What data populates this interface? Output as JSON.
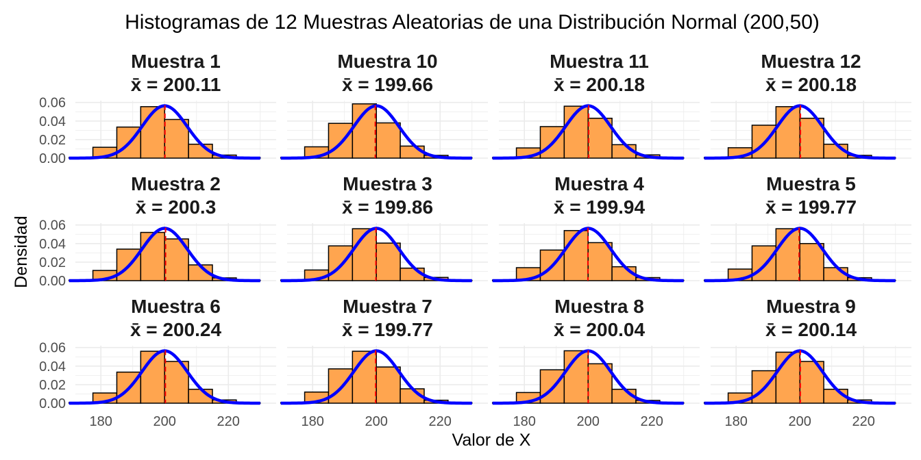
{
  "title": "Histogramas de 12 Muestras Aleatorias de una Distribución Normal (200,50)",
  "xlabel": "Valor de X",
  "ylabel": "Densidad",
  "colors": {
    "bar_fill": "#FFA54F",
    "bar_stroke": "#000000",
    "curve": "#0000FF",
    "mean_line": "#FF0000",
    "grid": "#EBEBEB"
  },
  "chart_data": {
    "type": "bar",
    "subtype": "faceted histogram with normal density overlay",
    "xlim": [
      172,
      235
    ],
    "ylim": [
      0,
      0.062
    ],
    "x_ticks": [
      180,
      200,
      220
    ],
    "y_ticks": [
      0.0,
      0.02,
      0.04,
      0.06
    ],
    "y_tick_labels": [
      "0.00",
      "0.02",
      "0.04",
      "0.06"
    ],
    "bin_edges": [
      170,
      177.5,
      185,
      192.5,
      200,
      207.5,
      215,
      222.5,
      230
    ],
    "curve": {
      "type": "normal density",
      "mean": 200,
      "sd": 7.07
    },
    "grid": true,
    "panels": [
      {
        "title": "Muestra 1",
        "mean_label": "x̄ = 200.11",
        "mean": 200.11,
        "densities": [
          0.0006,
          0.0117,
          0.0335,
          0.0555,
          0.0417,
          0.015,
          0.0033,
          0.0005
        ]
      },
      {
        "title": "Muestra 10",
        "mean_label": "x̄ = 199.66",
        "mean": 199.66,
        "densities": [
          0.0007,
          0.0122,
          0.0375,
          0.0585,
          0.038,
          0.013,
          0.003,
          0.0004
        ]
      },
      {
        "title": "Muestra 11",
        "mean_label": "x̄ = 200.18",
        "mean": 200.18,
        "densities": [
          0.0005,
          0.011,
          0.034,
          0.056,
          0.043,
          0.0145,
          0.0035,
          0.0003
        ]
      },
      {
        "title": "Muestra 12",
        "mean_label": "x̄ = 200.18",
        "mean": 200.18,
        "densities": [
          0.0006,
          0.0112,
          0.0355,
          0.0555,
          0.043,
          0.015,
          0.003,
          0.0004
        ]
      },
      {
        "title": "Muestra 2",
        "mean_label": "x̄ = 200.3",
        "mean": 200.3,
        "densities": [
          0.0005,
          0.011,
          0.034,
          0.052,
          0.045,
          0.017,
          0.003,
          0.0004
        ]
      },
      {
        "title": "Muestra 3",
        "mean_label": "x̄ = 199.86",
        "mean": 199.86,
        "densities": [
          0.0007,
          0.0115,
          0.0375,
          0.056,
          0.0405,
          0.0135,
          0.0035,
          0.0003
        ]
      },
      {
        "title": "Muestra 4",
        "mean_label": "x̄ = 199.94",
        "mean": 199.94,
        "densities": [
          0.0006,
          0.014,
          0.033,
          0.054,
          0.041,
          0.015,
          0.0033,
          0.0004
        ]
      },
      {
        "title": "Muestra 5",
        "mean_label": "x̄ = 199.77",
        "mean": 199.77,
        "densities": [
          0.0005,
          0.0125,
          0.0375,
          0.056,
          0.04,
          0.014,
          0.0032,
          0.0004
        ]
      },
      {
        "title": "Muestra 6",
        "mean_label": "x̄ = 200.24",
        "mean": 200.24,
        "densities": [
          0.0006,
          0.011,
          0.0335,
          0.056,
          0.045,
          0.015,
          0.0035,
          0.0003
        ]
      },
      {
        "title": "Muestra 7",
        "mean_label": "x̄ = 199.77",
        "mean": 199.77,
        "densities": [
          0.0006,
          0.012,
          0.037,
          0.056,
          0.039,
          0.0155,
          0.0032,
          0.0004
        ]
      },
      {
        "title": "Muestra 8",
        "mean_label": "x̄ = 200.04",
        "mean": 200.04,
        "densities": [
          0.0005,
          0.0115,
          0.036,
          0.0565,
          0.0425,
          0.015,
          0.003,
          0.0004
        ]
      },
      {
        "title": "Muestra 9",
        "mean_label": "x̄ = 200.14",
        "mean": 200.14,
        "densities": [
          0.0006,
          0.011,
          0.035,
          0.055,
          0.045,
          0.015,
          0.0035,
          0.0003
        ]
      }
    ]
  }
}
